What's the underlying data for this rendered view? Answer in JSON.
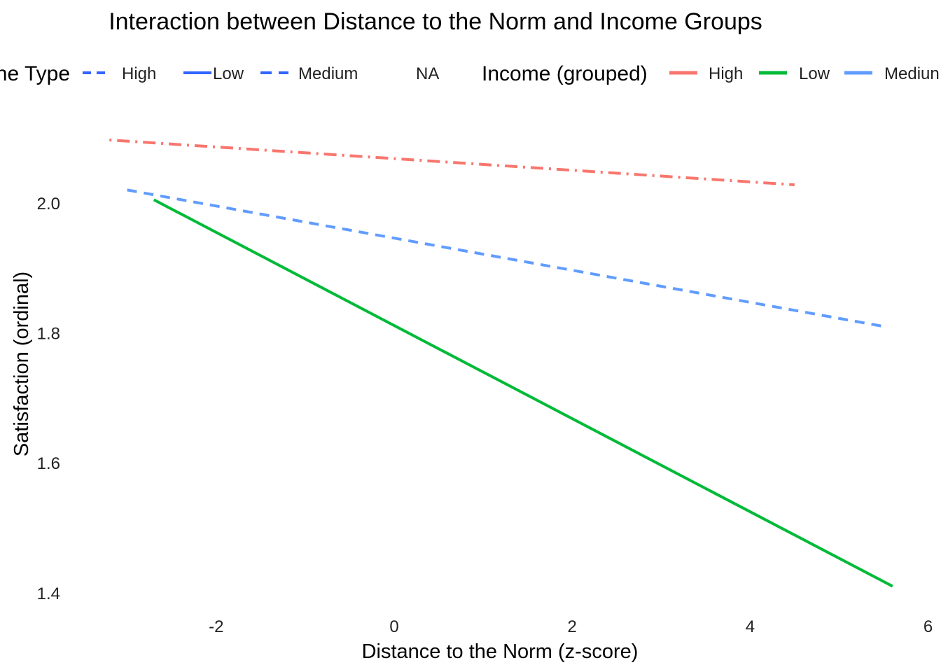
{
  "chart_data": {
    "type": "line",
    "title": "Interaction between Distance to the Norm and Income Groups",
    "xlabel": "Distance to the Norm (z-score)",
    "ylabel": "Satisfaction (ordinal)",
    "xlim": [
      -3.5,
      6
    ],
    "ylim": [
      1.4,
      2.1
    ],
    "x_ticks": [
      -2,
      0,
      2,
      4,
      6
    ],
    "y_ticks": [
      1.4,
      1.6,
      1.8,
      2.0
    ],
    "x_tick_labels": [
      "-2",
      "0",
      "2",
      "4",
      "6"
    ],
    "y_tick_labels": [
      "1.4",
      "1.6",
      "1.8",
      "2.0"
    ],
    "grid": false,
    "legend_position": "top",
    "legends": [
      {
        "title": "ne Type",
        "entries": [
          {
            "label": "High",
            "linetype": "dashed",
            "color": "#3366ff"
          },
          {
            "label": "Low",
            "linetype": "solid",
            "color": "#3366ff"
          },
          {
            "label": "Medium",
            "linetype": "longdash",
            "color": "#3366ff"
          },
          {
            "label": "NA",
            "linetype": "none",
            "color": "#3366ff"
          }
        ]
      },
      {
        "title": "Income (grouped)",
        "entries": [
          {
            "label": "High",
            "color": "#f8766d"
          },
          {
            "label": "Low",
            "color": "#00ba38"
          },
          {
            "label": "Mediun",
            "color": "#619cff"
          }
        ]
      }
    ],
    "series": [
      {
        "name": "High",
        "color": "#f8766d",
        "linetype": "dotdash",
        "x": [
          -3.2,
          4.5
        ],
        "y": [
          2.097,
          2.028
        ]
      },
      {
        "name": "Low",
        "color": "#00ba38",
        "linetype": "solid",
        "x": [
          -2.7,
          5.6
        ],
        "y": [
          2.005,
          1.41
        ]
      },
      {
        "name": "Medium",
        "color": "#619cff",
        "linetype": "dashed",
        "x": [
          -3.0,
          5.5
        ],
        "y": [
          2.02,
          1.81
        ]
      }
    ]
  }
}
